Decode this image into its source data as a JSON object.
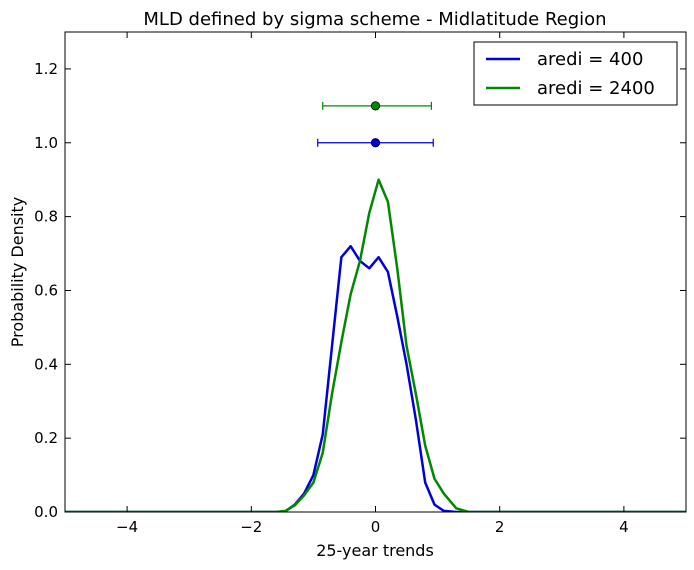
{
  "chart_data": {
    "type": "line",
    "title": "MLD defined by sigma scheme  - Midlatitude Region",
    "xlabel": "25-year trends",
    "ylabel": "Probability Density",
    "xlim": [
      -5,
      5
    ],
    "ylim": [
      0,
      1.3
    ],
    "x_ticks": [
      -4,
      -2,
      0,
      2,
      4
    ],
    "x_tick_labels": [
      "−4",
      "−2",
      "0",
      "2",
      "4"
    ],
    "y_ticks": [
      0.0,
      0.2,
      0.4,
      0.6,
      0.8,
      1.0,
      1.2
    ],
    "y_tick_labels": [
      "0.0",
      "0.2",
      "0.4",
      "0.6",
      "0.8",
      "1.0",
      "1.2"
    ],
    "grid": false,
    "legend_position": "top-right",
    "series": [
      {
        "name": "aredi = 400",
        "color": "#0000dd",
        "x": [
          -5,
          -4,
          -3,
          -2,
          -1.6,
          -1.45,
          -1.3,
          -1.15,
          -1.0,
          -0.85,
          -0.7,
          -0.55,
          -0.4,
          -0.25,
          -0.1,
          0.05,
          0.2,
          0.35,
          0.5,
          0.65,
          0.8,
          0.95,
          1.1,
          1.3,
          1.5,
          2,
          3,
          4,
          5
        ],
        "y": [
          0,
          0,
          0,
          0,
          0,
          0.002,
          0.02,
          0.05,
          0.1,
          0.21,
          0.45,
          0.69,
          0.72,
          0.68,
          0.66,
          0.69,
          0.65,
          0.53,
          0.4,
          0.25,
          0.08,
          0.02,
          0.003,
          0,
          0,
          0,
          0,
          0,
          0
        ]
      },
      {
        "name": "aredi = 2400",
        "color": "#008800",
        "x": [
          -5,
          -4,
          -3,
          -2,
          -1.6,
          -1.45,
          -1.3,
          -1.15,
          -1.0,
          -0.85,
          -0.7,
          -0.55,
          -0.4,
          -0.25,
          -0.1,
          0.05,
          0.2,
          0.35,
          0.5,
          0.65,
          0.8,
          0.95,
          1.1,
          1.3,
          1.5,
          2,
          3,
          4,
          5
        ],
        "y": [
          0,
          0,
          0,
          0,
          0,
          0.003,
          0.018,
          0.045,
          0.08,
          0.16,
          0.32,
          0.46,
          0.59,
          0.68,
          0.81,
          0.9,
          0.84,
          0.66,
          0.45,
          0.32,
          0.18,
          0.09,
          0.05,
          0.01,
          0,
          0,
          0,
          0,
          0
        ]
      }
    ],
    "error_bars": [
      {
        "series": "aredi = 2400",
        "color": "#008800",
        "x": 0.0,
        "y": 1.1,
        "xerr_low": 0.85,
        "xerr_high": 0.9
      },
      {
        "series": "aredi = 400",
        "color": "#0000dd",
        "x": 0.0,
        "y": 1.0,
        "xerr_low": 0.93,
        "xerr_high": 0.93
      }
    ]
  }
}
